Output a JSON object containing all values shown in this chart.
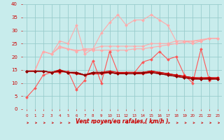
{
  "title": "",
  "xlabel": "Vent moyen/en rafales ( km/h )",
  "x": [
    0,
    1,
    2,
    3,
    4,
    5,
    6,
    7,
    8,
    9,
    10,
    11,
    12,
    13,
    14,
    15,
    16,
    17,
    18,
    19,
    20,
    21,
    22,
    23
  ],
  "series": [
    {
      "color": "#ffaaaa",
      "lw": 0.8,
      "marker": "D",
      "ms": 2.0,
      "y": [
        14.5,
        14.5,
        22,
        21,
        26,
        25,
        32,
        21,
        23,
        29,
        33,
        36,
        32,
        34,
        34,
        36,
        34,
        32,
        26,
        26,
        25,
        26,
        27,
        27
      ]
    },
    {
      "color": "#ffaaaa",
      "lw": 0.8,
      "marker": "D",
      "ms": 2.0,
      "y": [
        14.5,
        14.8,
        22,
        21,
        24,
        23,
        22,
        23,
        23,
        24,
        24,
        24,
        24,
        24,
        24,
        25,
        25,
        25,
        26,
        26,
        26,
        26,
        27,
        27
      ]
    },
    {
      "color": "#ffaaaa",
      "lw": 0.8,
      "marker": "D",
      "ms": 2.0,
      "y": [
        14.5,
        14.8,
        22,
        21,
        23.5,
        23,
        22.5,
        22.5,
        22.5,
        22.5,
        22.5,
        22.5,
        22.5,
        23,
        23,
        23.5,
        24,
        24.5,
        25,
        25.5,
        26,
        26.5,
        27,
        27
      ]
    },
    {
      "color": "#ff5555",
      "lw": 0.8,
      "marker": "D",
      "ms": 2.0,
      "y": [
        4.5,
        8,
        13,
        14,
        14,
        14.5,
        7.5,
        11,
        18.5,
        10,
        22,
        14,
        14,
        14,
        18,
        19,
        22,
        19,
        20,
        13,
        10,
        23,
        11,
        12
      ]
    },
    {
      "color": "#cc0000",
      "lw": 1.0,
      "marker": "D",
      "ms": 2.0,
      "y": [
        14.5,
        14.5,
        14.5,
        14,
        15,
        14,
        14,
        13,
        14,
        14,
        14,
        13.5,
        14,
        14,
        14,
        14.5,
        14,
        13.5,
        13,
        12.5,
        12,
        12,
        12,
        12
      ]
    },
    {
      "color": "#cc0000",
      "lw": 1.0,
      "marker": "D",
      "ms": 2.0,
      "y": [
        14.5,
        14.5,
        14.5,
        14,
        14.5,
        14,
        13.5,
        13,
        13.5,
        13.5,
        14,
        13.5,
        13.5,
        13.5,
        13.5,
        14,
        13.5,
        13,
        12.5,
        12,
        11.5,
        11.5,
        11.5,
        11.5
      ]
    },
    {
      "color": "#cc0000",
      "lw": 1.0,
      "marker": "D",
      "ms": 2.0,
      "y": [
        14.5,
        14.5,
        14.5,
        14,
        14.8,
        14,
        14,
        13,
        14,
        14,
        14.5,
        14,
        14,
        14,
        14,
        14.5,
        14,
        13.5,
        13,
        12.5,
        12,
        11.5,
        12,
        11.5
      ]
    },
    {
      "color": "#880000",
      "lw": 0.8,
      "marker": "D",
      "ms": 2.0,
      "y": [
        14.5,
        14.5,
        14.5,
        14,
        14.5,
        14,
        14,
        13,
        14,
        14,
        14,
        13.5,
        13.5,
        13.5,
        14,
        14,
        13.5,
        13,
        12.5,
        12,
        11.5,
        11.5,
        11.5,
        11.5
      ]
    }
  ],
  "ylim": [
    0,
    40
  ],
  "yticks": [
    0,
    5,
    10,
    15,
    20,
    25,
    30,
    35,
    40
  ],
  "xlim": [
    -0.5,
    23.5
  ],
  "bg_color": "#c8ecec",
  "grid_color": "#99cccc",
  "tick_color": "#cc0000",
  "label_color": "#cc0000"
}
